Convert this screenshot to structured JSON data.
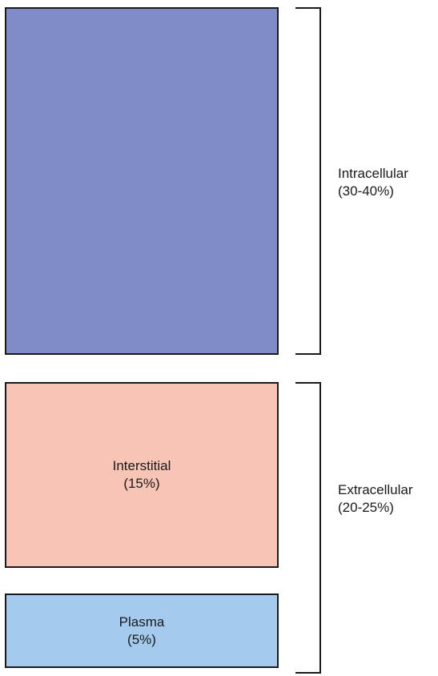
{
  "compartments": {
    "intracellular": {
      "name": "Intracellular",
      "percent": "(30-40%)",
      "color": "#7f8cc8"
    },
    "interstitial": {
      "name": "Interstitial",
      "percent": "(15%)",
      "color": "#f7c4b6"
    },
    "plasma": {
      "name": "Plasma",
      "percent": "(5%)",
      "color": "#a4cbee"
    }
  },
  "groups": {
    "intracellular": {
      "name": "Intracellular",
      "percent": "(30-40%)"
    },
    "extracellular": {
      "name": "Extracellular",
      "percent": "(20-25%)"
    }
  }
}
